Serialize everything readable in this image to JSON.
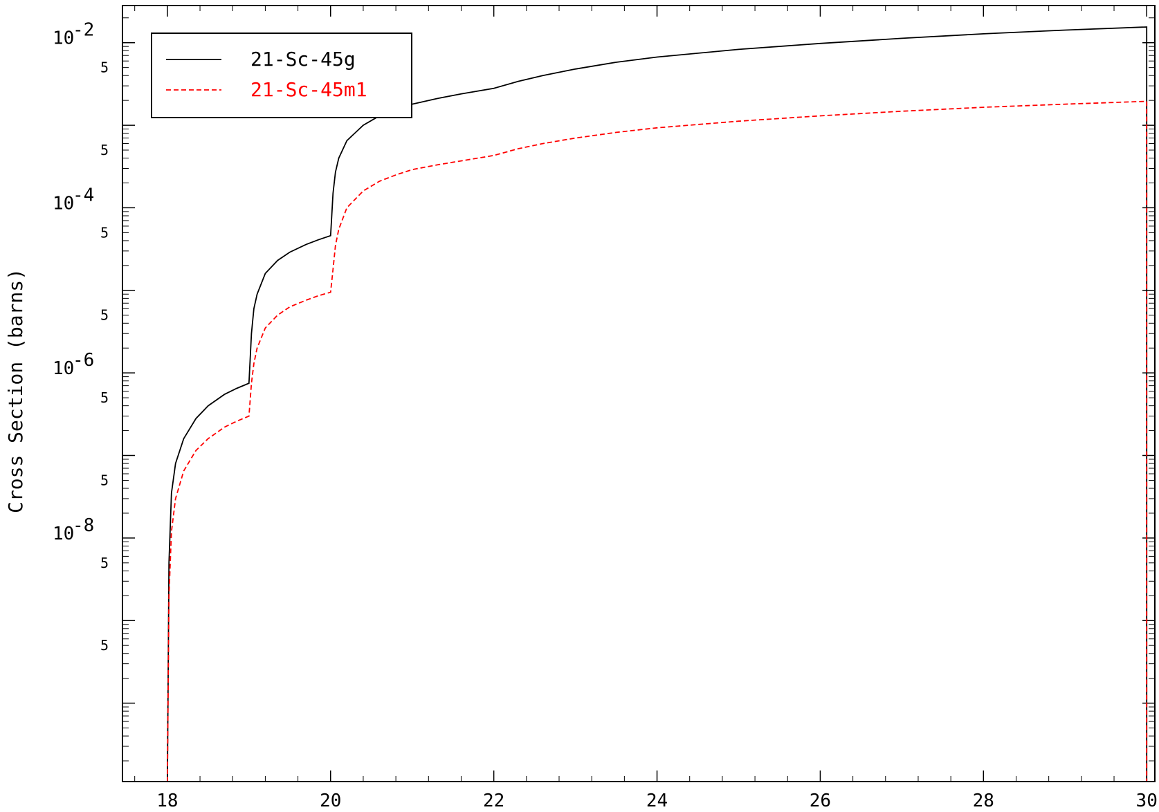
{
  "chart_data": {
    "type": "line",
    "xlabel": "",
    "ylabel": "Cross Section (barns)",
    "xlim": [
      17.45,
      30.1
    ],
    "ylim_log10": [
      -10.95,
      -1.55
    ],
    "y_scale": "log",
    "x_ticks": [
      18,
      20,
      22,
      24,
      26,
      28,
      30
    ],
    "y_major_ticks": [
      {
        "exp": -2,
        "label_base": "10",
        "label_exp": "-2"
      },
      {
        "exp": -4,
        "label_base": "10",
        "label_exp": "-4"
      },
      {
        "exp": -6,
        "label_base": "10",
        "label_exp": "-6"
      },
      {
        "exp": -8,
        "label_base": "10",
        "label_exp": "-8"
      }
    ],
    "y_minor_labels": [
      "5",
      "5",
      "5",
      "5",
      "5",
      "5",
      "5",
      "5"
    ],
    "legend_position": "top-left",
    "series": [
      {
        "name": "21-Sc-45g",
        "color": "#000000",
        "dash": "solid",
        "x": [
          18.0,
          18.02,
          18.05,
          18.1,
          18.2,
          18.35,
          18.5,
          18.7,
          18.85,
          19.0,
          19.03,
          19.06,
          19.1,
          19.2,
          19.35,
          19.5,
          19.7,
          19.85,
          20.0,
          20.03,
          20.06,
          20.1,
          20.2,
          20.4,
          20.6,
          20.8,
          21.0,
          21.3,
          21.6,
          22.0,
          22.3,
          22.6,
          23.0,
          23.5,
          24.0,
          25.0,
          26.0,
          27.0,
          28.0,
          29.0,
          30.0,
          30.0
        ],
        "y": [
          1e-11,
          5e-09,
          3.5e-08,
          8e-08,
          1.6e-07,
          2.8e-07,
          4e-07,
          5.5e-07,
          6.5e-07,
          7.5e-07,
          3e-06,
          6e-06,
          9e-06,
          1.6e-05,
          2.3e-05,
          2.9e-05,
          3.6e-05,
          4.1e-05,
          4.6e-05,
          0.00015,
          0.00027,
          0.0004,
          0.00065,
          0.001,
          0.0013,
          0.00155,
          0.0018,
          0.0021,
          0.0024,
          0.0028,
          0.0034,
          0.004,
          0.0048,
          0.0058,
          0.0067,
          0.0083,
          0.0098,
          0.0113,
          0.0128,
          0.0142,
          0.0155,
          1e-11
        ]
      },
      {
        "name": "21-Sc-45m1",
        "color": "#ff0000",
        "dash": "dashed",
        "x": [
          18.0,
          18.02,
          18.05,
          18.1,
          18.2,
          18.35,
          18.5,
          18.7,
          18.85,
          19.0,
          19.03,
          19.06,
          19.1,
          19.2,
          19.35,
          19.5,
          19.7,
          19.85,
          20.0,
          20.03,
          20.06,
          20.1,
          20.2,
          20.4,
          20.6,
          20.8,
          21.0,
          21.3,
          21.6,
          22.0,
          22.3,
          22.6,
          23.0,
          23.5,
          24.0,
          25.0,
          26.0,
          27.0,
          28.0,
          29.0,
          30.0,
          30.0
        ],
        "y": [
          1e-11,
          2e-09,
          1.2e-08,
          3e-08,
          6.5e-08,
          1.15e-07,
          1.6e-07,
          2.2e-07,
          2.6e-07,
          3e-07,
          7.5e-07,
          1.3e-06,
          2e-06,
          3.5e-06,
          5e-06,
          6.3e-06,
          7.6e-06,
          8.6e-06,
          9.5e-06,
          1.8e-05,
          3.5e-05,
          5.5e-05,
          0.0001,
          0.00016,
          0.00021,
          0.00025,
          0.00029,
          0.00033,
          0.00037,
          0.00043,
          0.00052,
          0.0006,
          0.0007,
          0.00082,
          0.00093,
          0.00112,
          0.0013,
          0.00148,
          0.00165,
          0.0018,
          0.00195,
          1e-11
        ]
      }
    ]
  }
}
